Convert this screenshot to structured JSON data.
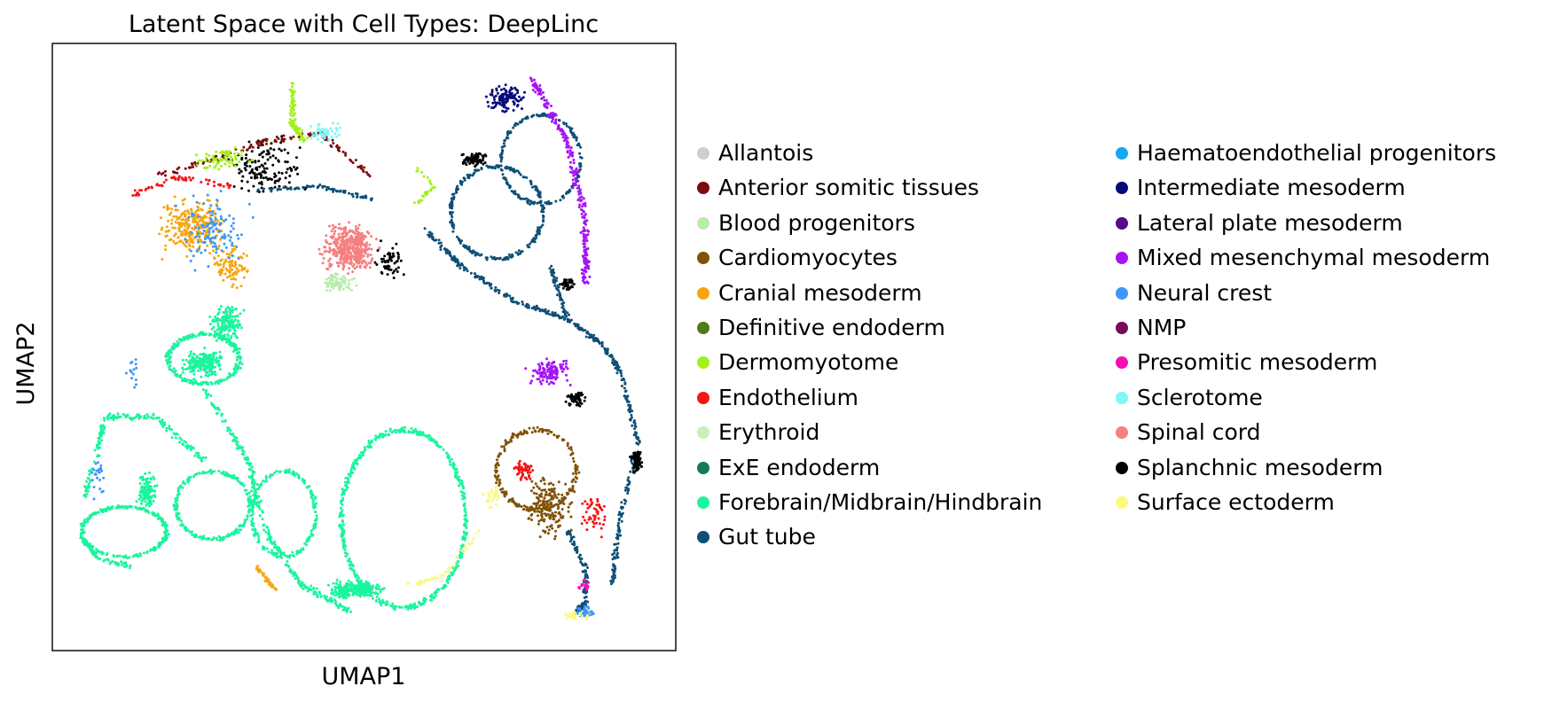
{
  "chart_data": {
    "type": "scatter",
    "title": "Latent Space with Cell Types: DeepLinc",
    "xlabel": "UMAP1",
    "ylabel": "UMAP2",
    "grid": false,
    "ticks": false,
    "legend_placement": "right",
    "legend_columns": 2,
    "series": [
      {
        "name": "Allantois",
        "color": "#d1cdd2"
      },
      {
        "name": "Anterior somitic tissues",
        "color": "#7e0c0c"
      },
      {
        "name": "Blood progenitors",
        "color": "#b8ecad"
      },
      {
        "name": "Cardiomyocytes",
        "color": "#7f5206"
      },
      {
        "name": "Cranial mesoderm",
        "color": "#f6a612"
      },
      {
        "name": "Definitive endoderm",
        "color": "#527a16"
      },
      {
        "name": "Dermomyotome",
        "color": "#a2f11d"
      },
      {
        "name": "Endothelium",
        "color": "#f41616"
      },
      {
        "name": "Erythroid",
        "color": "#c4f2b8"
      },
      {
        "name": "ExE endoderm",
        "color": "#13785a"
      },
      {
        "name": "Forebrain/Midbrain/Hindbrain",
        "color": "#1af59e"
      },
      {
        "name": "Gut tube",
        "color": "#0e4f77"
      },
      {
        "name": "Haematoendothelial progenitors",
        "color": "#14a8f0"
      },
      {
        "name": "Intermediate mesoderm",
        "color": "#050a78"
      },
      {
        "name": "Lateral plate mesoderm",
        "color": "#550a8a"
      },
      {
        "name": "Mixed mesenchymal mesoderm",
        "color": "#a515f3"
      },
      {
        "name": "Neural crest",
        "color": "#3e98f5"
      },
      {
        "name": "NMP",
        "color": "#7a0b5a"
      },
      {
        "name": "Presomitic mesoderm",
        "color": "#f410b0"
      },
      {
        "name": "Sclerotome",
        "color": "#7ff7f7"
      },
      {
        "name": "Spinal cord",
        "color": "#f58080"
      },
      {
        "name": "Splanchnic mesoderm",
        "color": "#000000"
      },
      {
        "name": "Surface ectoderm",
        "color": "#fafa80"
      }
    ]
  }
}
